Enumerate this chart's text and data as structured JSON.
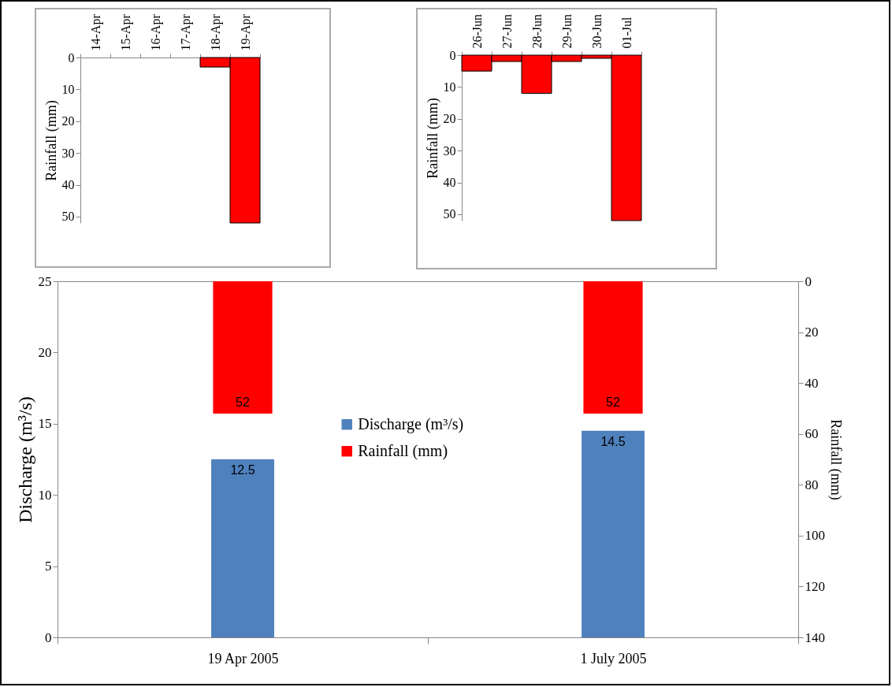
{
  "chart_data": [
    {
      "type": "bar",
      "categories": [
        "14-Apr",
        "15-Apr",
        "16-Apr",
        "17-Apr",
        "18-Apr",
        "19-Apr"
      ],
      "values": [
        0,
        0,
        0,
        0,
        3,
        52
      ],
      "color": "#ff0000",
      "ylabel": "Rainfall (mm)",
      "ylim": [
        52,
        0
      ],
      "yticks": [
        0,
        10,
        20,
        30,
        40,
        50
      ]
    },
    {
      "type": "bar",
      "categories": [
        "26-Jun",
        "27-Jun",
        "28-Jun",
        "29-Jun",
        "30-Jun",
        "01-Jul"
      ],
      "values": [
        5,
        2,
        12,
        2,
        1,
        52
      ],
      "color": "#ff0000",
      "ylabel": "Rainfall (mm)",
      "ylim": [
        52,
        0
      ],
      "yticks": [
        0,
        10,
        20,
        30,
        40,
        50
      ]
    },
    {
      "type": "bar",
      "categories": [
        "19 Apr 2005",
        "1 July 2005"
      ],
      "series": [
        {
          "name": "Discharge (m³/s)",
          "color": "#4f81bd",
          "values": [
            12.5,
            14.5
          ]
        },
        {
          "name": "Rainfall (mm)",
          "color": "#ff0000",
          "values": [
            52,
            52
          ],
          "axis": "y2"
        }
      ],
      "ylabel": "Discharge (m³/s)",
      "y2label": "Rainfall (mm)",
      "ylim": [
        0,
        25
      ],
      "yticks": [
        0,
        5,
        10,
        15,
        20,
        25
      ],
      "y2lim": [
        140,
        0
      ],
      "y2ticks": [
        0,
        20,
        40,
        60,
        80,
        100,
        120,
        140
      ],
      "data_labels": true,
      "legend": "center"
    }
  ]
}
